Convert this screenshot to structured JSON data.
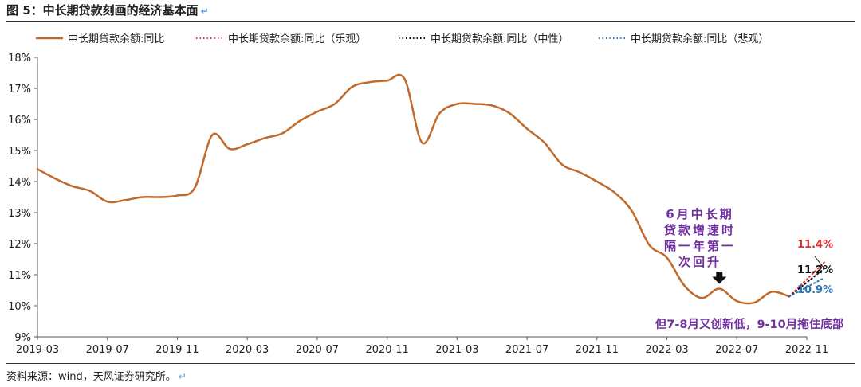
{
  "figure": {
    "title": "图 5：中长期贷款刻画的经济基本面",
    "return_mark": "↵",
    "source": "资料来源：wind，天风证券研究所。"
  },
  "colors": {
    "main": "#c0692a",
    "optimistic": "#e03030",
    "neutral": "#111111",
    "pessimistic": "#2e74b5",
    "annotation": "#7030a0"
  },
  "chart_data": {
    "type": "line",
    "title": "",
    "xlabel": "",
    "ylabel": "",
    "ylim": [
      9,
      18
    ],
    "yticks": [
      9,
      10,
      11,
      12,
      13,
      14,
      15,
      16,
      17,
      18
    ],
    "ytick_labels": [
      "9%",
      "10%",
      "11%",
      "12%",
      "13%",
      "14%",
      "15%",
      "16%",
      "17%",
      "18%"
    ],
    "xlim": [
      "2019-03",
      "2022-11"
    ],
    "xtick_labels": [
      "2019-03",
      "2019-07",
      "2019-11",
      "2020-03",
      "2020-07",
      "2020-11",
      "2021-03",
      "2021-07",
      "2021-11",
      "2022-03",
      "2022-07",
      "2022-11"
    ],
    "legend_position": "top",
    "grid": false,
    "series": [
      {
        "name": "中长期贷款余额:同比",
        "style": "solid",
        "color_key": "main",
        "x": [
          "2019-03",
          "2019-04",
          "2019-05",
          "2019-06",
          "2019-07",
          "2019-08",
          "2019-09",
          "2019-10",
          "2019-11",
          "2019-12",
          "2020-01",
          "2020-02",
          "2020-03",
          "2020-04",
          "2020-05",
          "2020-06",
          "2020-07",
          "2020-08",
          "2020-09",
          "2020-10",
          "2020-11",
          "2020-12",
          "2021-01",
          "2021-02",
          "2021-03",
          "2021-04",
          "2021-05",
          "2021-06",
          "2021-07",
          "2021-08",
          "2021-09",
          "2021-10",
          "2021-11",
          "2021-12",
          "2022-01",
          "2022-02",
          "2022-03",
          "2022-04",
          "2022-05",
          "2022-06",
          "2022-07",
          "2022-08",
          "2022-09",
          "2022-10"
        ],
        "values": [
          14.4,
          14.1,
          13.85,
          13.7,
          13.35,
          13.4,
          13.5,
          13.5,
          13.55,
          13.8,
          15.5,
          15.05,
          15.2,
          15.4,
          15.55,
          15.95,
          16.25,
          16.5,
          17.05,
          17.2,
          17.25,
          17.3,
          15.25,
          16.2,
          16.5,
          16.5,
          16.45,
          16.2,
          15.7,
          15.25,
          14.55,
          14.3,
          14.0,
          13.65,
          13.05,
          11.95,
          11.55,
          10.65,
          10.25,
          10.55,
          10.15,
          10.1,
          10.45,
          10.3
        ]
      },
      {
        "name": "中长期贷款余额:同比（乐观）",
        "style": "dotted",
        "color_key": "optimistic",
        "x": [
          "2022-10",
          "2022-12"
        ],
        "values": [
          10.3,
          11.4
        ]
      },
      {
        "name": "中长期贷款余额:同比（中性）",
        "style": "dotted",
        "color_key": "neutral",
        "x": [
          "2022-10",
          "2022-12"
        ],
        "values": [
          10.3,
          11.2
        ]
      },
      {
        "name": "中长期贷款余额:同比（悲观）",
        "style": "dotted",
        "color_key": "pessimistic",
        "x": [
          "2022-10",
          "2022-12"
        ],
        "values": [
          10.3,
          10.9
        ]
      }
    ],
    "annotations": {
      "june_rise_lines": [
        "6月中长期",
        "贷款增速时",
        "隔一年第一",
        "次回升"
      ],
      "bottom_note": "但7-8月又创新低，9-10月拖住底部",
      "arrow_target": {
        "x": "2022-06",
        "y": 10.55
      },
      "end_labels": [
        {
          "text": "11.4%",
          "color_key": "optimistic"
        },
        {
          "text": "11.2%",
          "color_key": "neutral"
        },
        {
          "text": "10.9%",
          "color_key": "pessimistic"
        }
      ]
    }
  }
}
